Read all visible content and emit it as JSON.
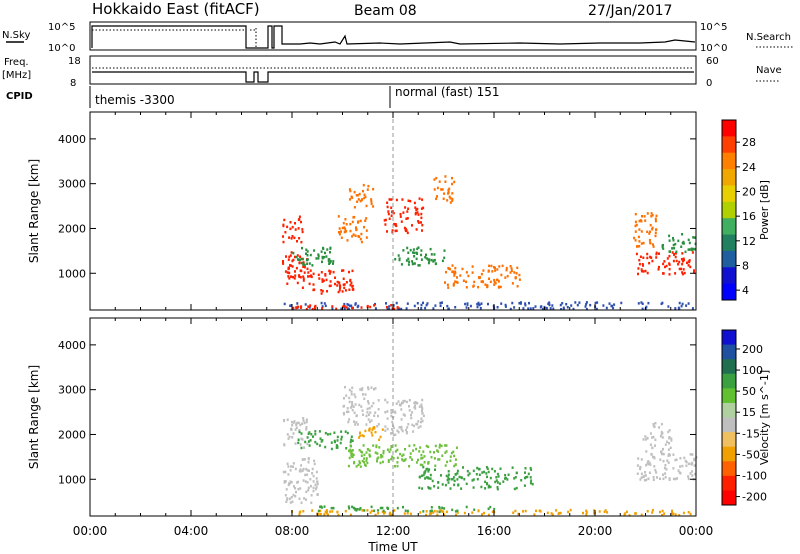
{
  "header": {
    "station": "Hokkaido East (fitACF)",
    "beam": "Beam 08",
    "date": "27/Jan/2017"
  },
  "summary": {
    "nsky_label": "N.Sky",
    "nsky_ticks": [
      "10^5",
      "10^0"
    ],
    "nsearch_label": "N.Search",
    "nsearch_ticks": [
      "10^5",
      "10^0"
    ],
    "freq_label_1": "Freq.",
    "freq_label_2": "[MHz]",
    "freq_ticks": [
      "18",
      "8"
    ],
    "nave_label": "Nave",
    "nave_ticks": [
      "60",
      "0"
    ],
    "cpid_label": "CPID",
    "cpid_1": "themis -3300",
    "cpid_2": "normal (fast) 151"
  },
  "chart_data": [
    {
      "type": "heatmap",
      "name": "power-panel",
      "xlabel": "",
      "ylabel": "Slant Range [km]",
      "xlim_hours": [
        0,
        24
      ],
      "ylim": [
        180,
        4600
      ],
      "yticks": [
        "1000",
        "2000",
        "3000",
        "4000"
      ],
      "colorbar_label": "Power [dB]",
      "colorbar_ticks": [
        "28",
        "24",
        "20",
        "16",
        "12",
        "8",
        "4"
      ],
      "colorbar_colors": [
        "#ff0000",
        "#ff4000",
        "#ff8000",
        "#f0a800",
        "#e8d000",
        "#b0d000",
        "#40b060",
        "#208060",
        "#1f5fa0",
        "#1010d0",
        "#0000ff"
      ],
      "colors": {
        "strong": "#ff2000",
        "medium": "#ff7000",
        "weak": "#2a9040",
        "faint": "#3050b0"
      },
      "regions": [
        {
          "t": [
            7.6,
            8.6
          ],
          "r": [
            700,
            1500
          ],
          "level": "strong"
        },
        {
          "t": [
            8.6,
            10.4
          ],
          "r": [
            550,
            1100
          ],
          "level": "strong"
        },
        {
          "t": [
            7.6,
            8.4
          ],
          "r": [
            1700,
            2300
          ],
          "level": "strong"
        },
        {
          "t": [
            8.0,
            9.6
          ],
          "r": [
            1200,
            1600
          ],
          "level": "weak"
        },
        {
          "t": [
            9.8,
            11.0
          ],
          "r": [
            1700,
            2300
          ],
          "level": "medium"
        },
        {
          "t": [
            10.2,
            11.2
          ],
          "r": [
            2500,
            3000
          ],
          "level": "medium"
        },
        {
          "t": [
            11.6,
            13.2
          ],
          "r": [
            1900,
            2700
          ],
          "level": "strong"
        },
        {
          "t": [
            12.0,
            14.0
          ],
          "r": [
            1200,
            1600
          ],
          "level": "weak"
        },
        {
          "t": [
            14.0,
            17.0
          ],
          "r": [
            700,
            1200
          ],
          "level": "medium"
        },
        {
          "t": [
            13.6,
            14.4
          ],
          "r": [
            2600,
            3200
          ],
          "level": "medium"
        },
        {
          "t": [
            21.6,
            24.0
          ],
          "r": [
            1000,
            1500
          ],
          "level": "strong"
        },
        {
          "t": [
            21.5,
            22.4
          ],
          "r": [
            1600,
            2400
          ],
          "level": "medium"
        },
        {
          "t": [
            22.5,
            24.0
          ],
          "r": [
            1500,
            1900
          ],
          "level": "weak"
        },
        {
          "t": [
            7.6,
            24.0
          ],
          "r": [
            220,
            380
          ],
          "level": "faint"
        },
        {
          "t": [
            8.0,
            12.5
          ],
          "r": [
            220,
            320
          ],
          "level": "strong"
        }
      ]
    },
    {
      "type": "heatmap",
      "name": "velocity-panel",
      "xlabel": "Time UT",
      "ylabel": "Slant Range [km]",
      "xlim_hours": [
        0,
        24
      ],
      "ylim": [
        180,
        4600
      ],
      "xticks": [
        "00:00",
        "04:00",
        "08:00",
        "12:00",
        "16:00",
        "20:00",
        "00:00"
      ],
      "yticks": [
        "1000",
        "2000",
        "3000",
        "4000"
      ],
      "colorbar_label": "Velocity [m s^-1]",
      "colorbar_ticks": [
        "200",
        "100",
        "50",
        "15",
        "-15",
        "-50",
        "-100",
        "-200"
      ],
      "colorbar_colors": [
        "#1010d0",
        "#2050a0",
        "#207050",
        "#3aa040",
        "#60c030",
        "#b0d0a0",
        "#bfbfbf",
        "#f0c060",
        "#f0a000",
        "#ff6000",
        "#ff2000",
        "#ff0000"
      ],
      "colors": {
        "grey": "#c0c0c0",
        "green": "#3aa040",
        "lightgreen": "#70c040",
        "orange": "#f0a000"
      },
      "regions": [
        {
          "t": [
            7.6,
            9.0
          ],
          "r": [
            500,
            1500
          ],
          "level": "grey"
        },
        {
          "t": [
            7.6,
            8.6
          ],
          "r": [
            1700,
            2400
          ],
          "level": "grey"
        },
        {
          "t": [
            8.2,
            10.4
          ],
          "r": [
            1700,
            2100
          ],
          "level": "green"
        },
        {
          "t": [
            10.0,
            11.4
          ],
          "r": [
            2200,
            3100
          ],
          "level": "grey"
        },
        {
          "t": [
            11.6,
            13.2
          ],
          "r": [
            2000,
            2800
          ],
          "level": "grey"
        },
        {
          "t": [
            10.2,
            14.5
          ],
          "r": [
            1300,
            1800
          ],
          "level": "lightgreen"
        },
        {
          "t": [
            13.0,
            17.5
          ],
          "r": [
            800,
            1300
          ],
          "level": "green"
        },
        {
          "t": [
            21.6,
            24.0
          ],
          "r": [
            1000,
            1600
          ],
          "level": "grey"
        },
        {
          "t": [
            21.8,
            23.0
          ],
          "r": [
            1600,
            2300
          ],
          "level": "grey"
        },
        {
          "t": [
            7.8,
            24.0
          ],
          "r": [
            220,
            340
          ],
          "level": "orange"
        },
        {
          "t": [
            9.0,
            16.0
          ],
          "r": [
            300,
            420
          ],
          "level": "green"
        },
        {
          "t": [
            10.6,
            11.6
          ],
          "r": [
            1900,
            2200
          ],
          "level": "orange"
        }
      ]
    }
  ]
}
